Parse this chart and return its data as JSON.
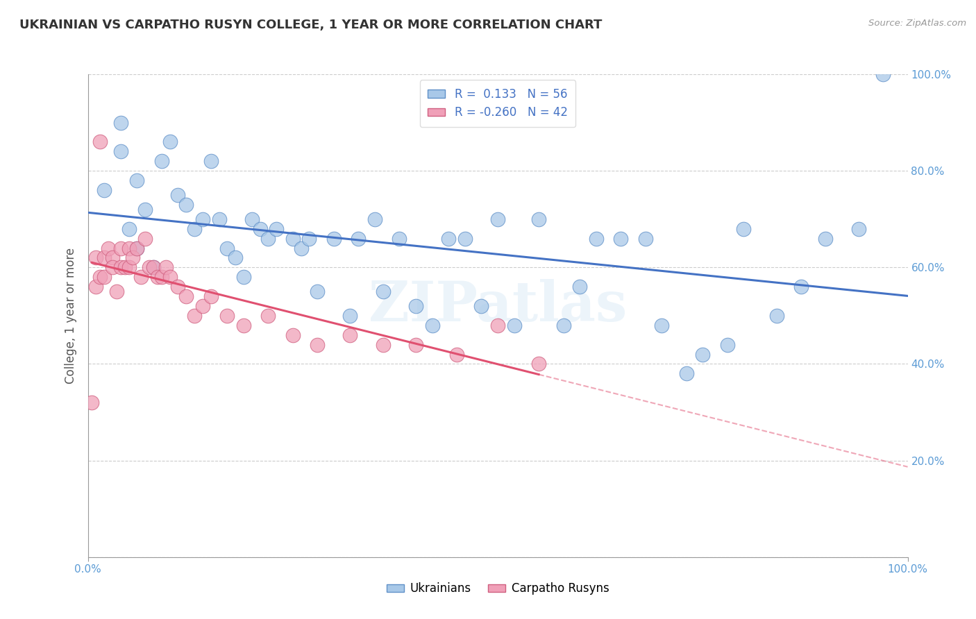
{
  "title": "UKRAINIAN VS CARPATHO RUSYN COLLEGE, 1 YEAR OR MORE CORRELATION CHART",
  "source_text": "Source: ZipAtlas.com",
  "ylabel": "College, 1 year or more",
  "xlim": [
    0.0,
    1.0
  ],
  "ylim": [
    0.0,
    1.0
  ],
  "y_ticks": [
    0.0,
    0.2,
    0.4,
    0.6,
    0.8,
    1.0
  ],
  "R_ukrainian": 0.133,
  "N_ukrainian": 56,
  "R_carpatho": -0.26,
  "N_carpatho": 42,
  "watermark_text": "ZIPatlas",
  "blue_line_color": "#4472c4",
  "pink_line_color": "#e05070",
  "scatter_blue_face": "#a8c8e8",
  "scatter_blue_edge": "#6090c8",
  "scatter_pink_face": "#f0a0b8",
  "scatter_pink_edge": "#d06080",
  "background_color": "#ffffff",
  "grid_color": "#cccccc",
  "title_color": "#333333",
  "axis_label_color": "#555555",
  "right_tick_color": "#5b9bd5",
  "ukrainians_x": [
    0.02,
    0.04,
    0.04,
    0.05,
    0.06,
    0.06,
    0.07,
    0.08,
    0.09,
    0.1,
    0.11,
    0.12,
    0.13,
    0.14,
    0.15,
    0.16,
    0.17,
    0.18,
    0.19,
    0.2,
    0.21,
    0.22,
    0.23,
    0.25,
    0.26,
    0.27,
    0.28,
    0.3,
    0.32,
    0.33,
    0.35,
    0.36,
    0.38,
    0.4,
    0.42,
    0.44,
    0.46,
    0.48,
    0.5,
    0.52,
    0.55,
    0.58,
    0.6,
    0.62,
    0.65,
    0.68,
    0.7,
    0.73,
    0.75,
    0.78,
    0.8,
    0.84,
    0.87,
    0.9,
    0.94,
    0.97
  ],
  "ukrainians_y": [
    0.76,
    0.84,
    0.9,
    0.68,
    0.64,
    0.78,
    0.72,
    0.6,
    0.82,
    0.86,
    0.75,
    0.73,
    0.68,
    0.7,
    0.82,
    0.7,
    0.64,
    0.62,
    0.58,
    0.7,
    0.68,
    0.66,
    0.68,
    0.66,
    0.64,
    0.66,
    0.55,
    0.66,
    0.5,
    0.66,
    0.7,
    0.55,
    0.66,
    0.52,
    0.48,
    0.66,
    0.66,
    0.52,
    0.7,
    0.48,
    0.7,
    0.48,
    0.56,
    0.66,
    0.66,
    0.66,
    0.48,
    0.38,
    0.42,
    0.44,
    0.68,
    0.5,
    0.56,
    0.66,
    0.68,
    1.0
  ],
  "carpatho_x": [
    0.005,
    0.01,
    0.01,
    0.015,
    0.015,
    0.02,
    0.02,
    0.025,
    0.03,
    0.03,
    0.035,
    0.04,
    0.04,
    0.045,
    0.05,
    0.05,
    0.055,
    0.06,
    0.065,
    0.07,
    0.075,
    0.08,
    0.085,
    0.09,
    0.095,
    0.1,
    0.11,
    0.12,
    0.13,
    0.14,
    0.15,
    0.17,
    0.19,
    0.22,
    0.25,
    0.28,
    0.32,
    0.36,
    0.4,
    0.45,
    0.5,
    0.55
  ],
  "carpatho_y": [
    0.32,
    0.62,
    0.56,
    0.58,
    0.86,
    0.62,
    0.58,
    0.64,
    0.62,
    0.6,
    0.55,
    0.64,
    0.6,
    0.6,
    0.64,
    0.6,
    0.62,
    0.64,
    0.58,
    0.66,
    0.6,
    0.6,
    0.58,
    0.58,
    0.6,
    0.58,
    0.56,
    0.54,
    0.5,
    0.52,
    0.54,
    0.5,
    0.48,
    0.5,
    0.46,
    0.44,
    0.46,
    0.44,
    0.44,
    0.42,
    0.48,
    0.4
  ],
  "legend_blue_label": "R =  0.133   N = 56",
  "legend_pink_label": "R = -0.260   N = 42"
}
